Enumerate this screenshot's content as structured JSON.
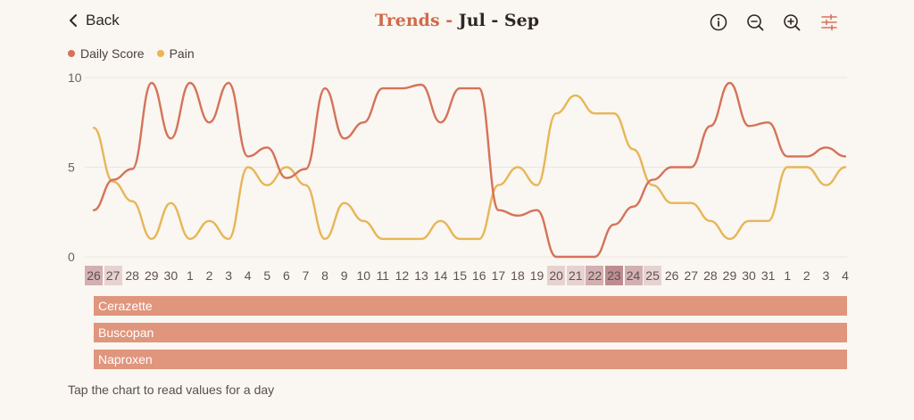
{
  "header": {
    "back_label": "Back",
    "title_prefix": "Trends -",
    "title_range": "Jul - Sep",
    "icons": [
      "info-icon",
      "zoom-out-icon",
      "zoom-in-icon",
      "sliders-icon"
    ]
  },
  "colors": {
    "background": "#faf6f1",
    "accent": "#cf6b4c",
    "score_line": "#d4735a",
    "pain_line": "#e6b657",
    "med_bar": "#e0957d",
    "grid": "#ece6e0"
  },
  "legend": [
    {
      "label": "Daily Score",
      "color": "#d4735a"
    },
    {
      "label": "Pain",
      "color": "#e6b657"
    }
  ],
  "chart_data": {
    "type": "line",
    "ylim": [
      0,
      10
    ],
    "yticks": [
      "10",
      "5",
      "0"
    ],
    "grid": true,
    "legend_position": "top-left",
    "x": [
      "26",
      "27",
      "28",
      "29",
      "30",
      "1",
      "2",
      "3",
      "4",
      "5",
      "6",
      "7",
      "8",
      "9",
      "10",
      "11",
      "12",
      "13",
      "14",
      "15",
      "16",
      "17",
      "18",
      "19",
      "20",
      "21",
      "22",
      "23",
      "24",
      "25",
      "26",
      "27",
      "28",
      "29",
      "30",
      "31",
      "1",
      "2",
      "3",
      "4"
    ],
    "highlight": [
      0.4,
      0.2,
      0,
      0,
      0,
      0,
      0,
      0,
      0,
      0,
      0,
      0,
      0,
      0,
      0,
      0,
      0,
      0,
      0,
      0,
      0,
      0,
      0,
      0,
      0.2,
      0.2,
      0.4,
      0.6,
      0.4,
      0.2,
      0,
      0,
      0,
      0,
      0,
      0,
      0,
      0,
      0,
      0
    ],
    "series": [
      {
        "name": "Daily Score",
        "color": "#d4735a",
        "values": [
          2.6,
          4.3,
          4.9,
          9.7,
          6.6,
          9.7,
          7.5,
          9.7,
          5.6,
          6.1,
          4.4,
          4.9,
          9.4,
          6.6,
          7.5,
          9.4,
          9.4,
          9.6,
          7.5,
          9.4,
          9.4,
          2.6,
          2.3,
          2.6,
          0,
          0,
          0,
          1.8,
          2.8,
          4.3,
          5,
          5,
          7.3,
          9.7,
          7.3,
          7.5,
          5.6,
          5.6,
          6.1,
          5.6
        ]
      },
      {
        "name": "Pain",
        "color": "#e6b657",
        "values": [
          7.2,
          4.2,
          3.1,
          1,
          3,
          1,
          2,
          1,
          5,
          4,
          5,
          4,
          1,
          3,
          2,
          1,
          1,
          1,
          2,
          1,
          1,
          4,
          5,
          4,
          8,
          9,
          8,
          8,
          6,
          4,
          3,
          3,
          2,
          1,
          2,
          2,
          5,
          5,
          4,
          5
        ]
      }
    ]
  },
  "medications": [
    "Cerazette",
    "Buscopan",
    "Naproxen"
  ],
  "hint": "Tap the chart to read values for a day"
}
